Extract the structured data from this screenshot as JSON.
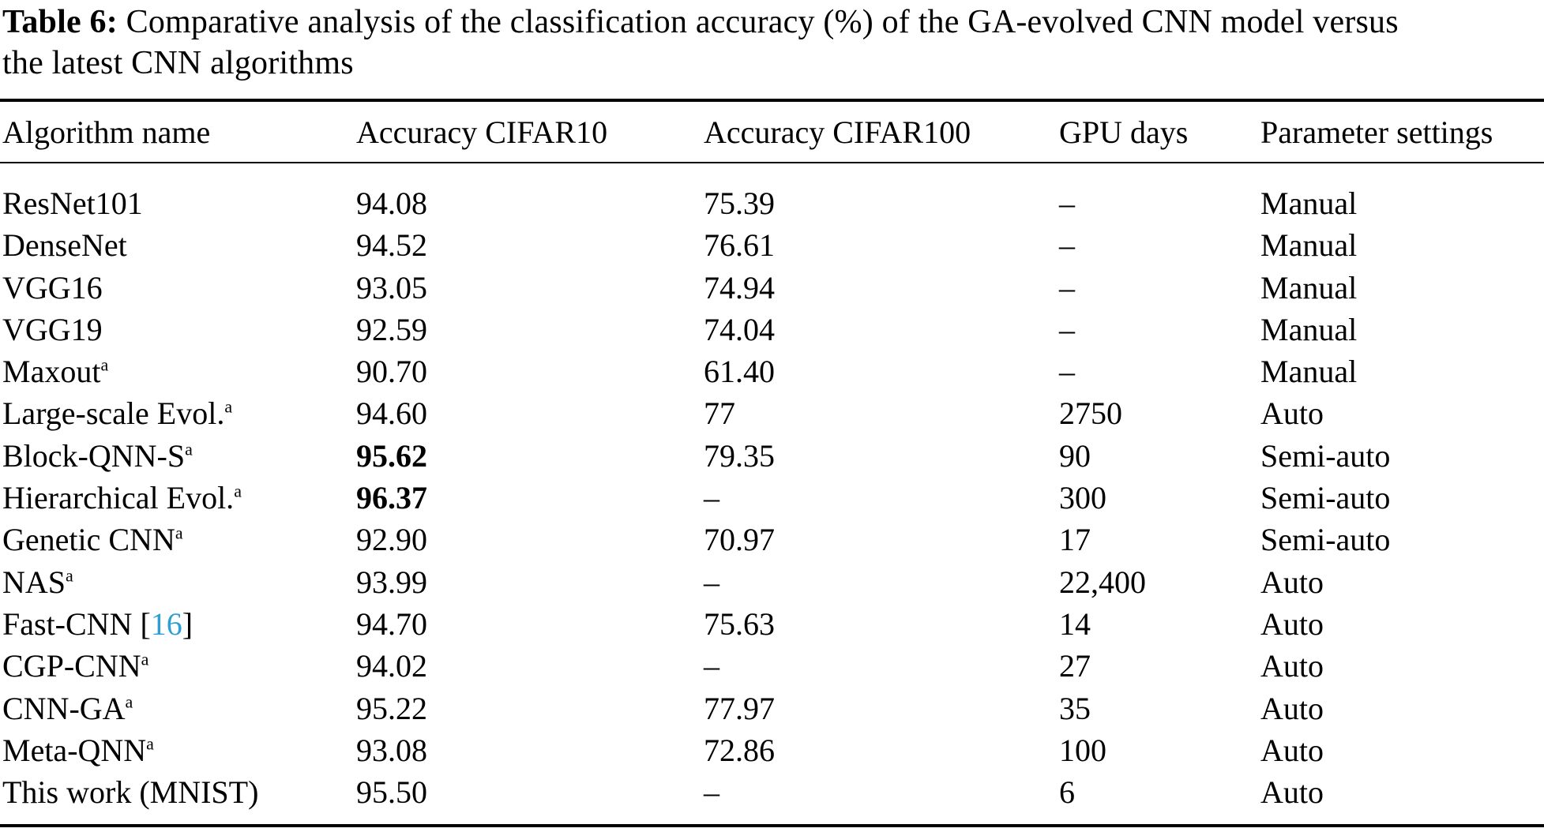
{
  "caption": {
    "label": "Table 6:",
    "line1": "Comparative analysis of the classification accuracy (%) of the GA-evolved CNN model versus",
    "line2": "the latest CNN algorithms"
  },
  "colors": {
    "text": "#000000",
    "citation_link": "#2e9fd6"
  },
  "table": {
    "columns": [
      "Algorithm name",
      "Accuracy CIFAR10",
      "Accuracy CIFAR100",
      "GPU days",
      "Parameter settings"
    ],
    "citation_open": "[",
    "citation_close": "]",
    "footnote_marker": "a",
    "rows": [
      {
        "name": "ResNet101",
        "sup": "",
        "cite": "",
        "cifar10": "94.08",
        "cifar10_bold": false,
        "cifar100": "75.39",
        "gpu_days": "–",
        "params": "Manual"
      },
      {
        "name": "DenseNet",
        "sup": "",
        "cite": "",
        "cifar10": "94.52",
        "cifar10_bold": false,
        "cifar100": "76.61",
        "gpu_days": "–",
        "params": "Manual"
      },
      {
        "name": "VGG16",
        "sup": "",
        "cite": "",
        "cifar10": "93.05",
        "cifar10_bold": false,
        "cifar100": "74.94",
        "gpu_days": "–",
        "params": "Manual"
      },
      {
        "name": "VGG19",
        "sup": "",
        "cite": "",
        "cifar10": "92.59",
        "cifar10_bold": false,
        "cifar100": "74.04",
        "gpu_days": "–",
        "params": "Manual"
      },
      {
        "name": "Maxout",
        "sup": "a",
        "cite": "",
        "cifar10": "90.70",
        "cifar10_bold": false,
        "cifar100": "61.40",
        "gpu_days": "–",
        "params": "Manual"
      },
      {
        "name": "Large-scale Evol.",
        "sup": "a",
        "cite": "",
        "cifar10": "94.60",
        "cifar10_bold": false,
        "cifar100": "77",
        "gpu_days": "2750",
        "params": "Auto"
      },
      {
        "name": "Block-QNN-S",
        "sup": "a",
        "cite": "",
        "cifar10": "95.62",
        "cifar10_bold": true,
        "cifar100": "79.35",
        "gpu_days": "90",
        "params": "Semi-auto"
      },
      {
        "name": "Hierarchical Evol.",
        "sup": "a",
        "cite": "",
        "cifar10": "96.37",
        "cifar10_bold": true,
        "cifar100": "–",
        "gpu_days": "300",
        "params": "Semi-auto"
      },
      {
        "name": "Genetic CNN",
        "sup": "a",
        "cite": "",
        "cifar10": "92.90",
        "cifar10_bold": false,
        "cifar100": "70.97",
        "gpu_days": "17",
        "params": "Semi-auto"
      },
      {
        "name": "NAS",
        "sup": "a",
        "cite": "",
        "cifar10": "93.99",
        "cifar10_bold": false,
        "cifar100": "–",
        "gpu_days": "22,400",
        "params": "Auto"
      },
      {
        "name": "Fast-CNN",
        "sup": "",
        "cite": "16",
        "cifar10": "94.70",
        "cifar10_bold": false,
        "cifar100": "75.63",
        "gpu_days": "14",
        "params": "Auto"
      },
      {
        "name": "CGP-CNN",
        "sup": "a",
        "cite": "",
        "cifar10": "94.02",
        "cifar10_bold": false,
        "cifar100": "–",
        "gpu_days": "27",
        "params": "Auto"
      },
      {
        "name": "CNN-GA",
        "sup": "a",
        "cite": "",
        "cifar10": "95.22",
        "cifar10_bold": false,
        "cifar100": "77.97",
        "gpu_days": "35",
        "params": "Auto"
      },
      {
        "name": "Meta-QNN",
        "sup": "a",
        "cite": "",
        "cifar10": "93.08",
        "cifar10_bold": false,
        "cifar100": "72.86",
        "gpu_days": "100",
        "params": "Auto"
      },
      {
        "name": "This work (MNIST)",
        "sup": "",
        "cite": "",
        "cifar10": "95.50",
        "cifar10_bold": false,
        "cifar100": "–",
        "gpu_days": "6",
        "params": "Auto"
      }
    ]
  }
}
